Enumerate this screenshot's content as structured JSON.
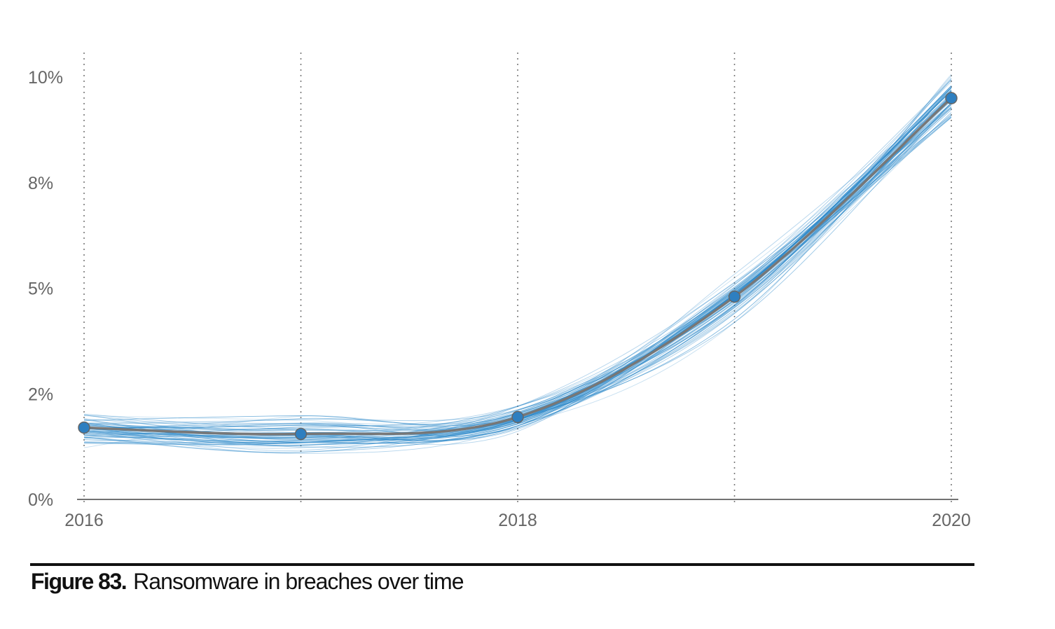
{
  "caption": {
    "figure_label": "Figure 83.",
    "text": "Ransomware in breaches over time"
  },
  "colors": {
    "sample_lines": "#2b88c9",
    "mean_line": "#777777",
    "points": "#2e7fc0",
    "axis": "#444444",
    "gridline": "#777777",
    "tick_text": "#666666"
  },
  "chart_data": {
    "type": "line",
    "title": "Ransomware in breaches over time",
    "x_ticks": [
      "2016",
      "2018",
      "2020"
    ],
    "y_ticks": [
      "0%",
      "2%",
      "5%",
      "8%",
      "10%"
    ],
    "y_tick_values": [
      0,
      2.5,
      5,
      7.5,
      10
    ],
    "ylim": [
      0,
      10.5
    ],
    "xlim": [
      2016,
      2020
    ],
    "grid": "vertical dotted at each year",
    "series": [
      {
        "kind": "observed",
        "x": [
          2016,
          2017,
          2018,
          2019,
          2020
        ],
        "values": [
          1.7,
          1.55,
          1.95,
          4.8,
          9.5
        ]
      }
    ],
    "simulated_lines": 60
  }
}
